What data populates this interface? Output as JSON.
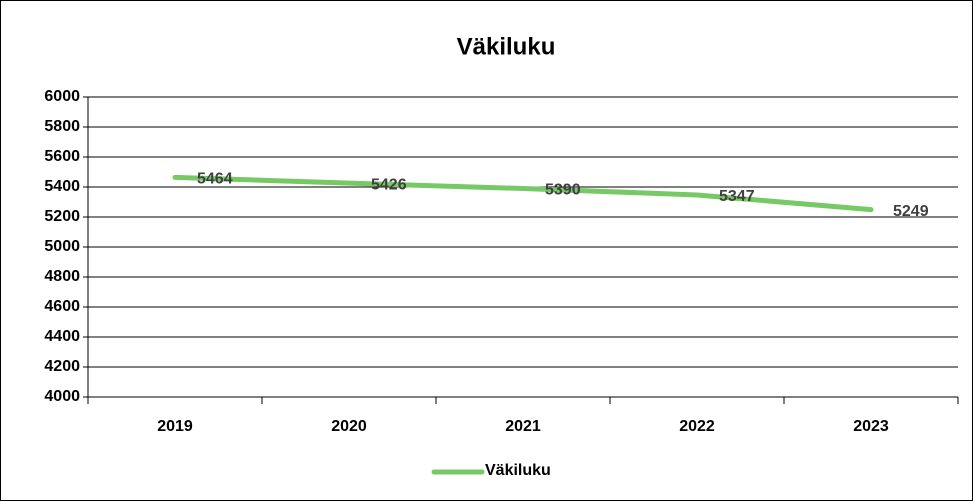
{
  "chart_data": {
    "type": "line",
    "title": "Väkiluku",
    "categories": [
      "2019",
      "2020",
      "2021",
      "2022",
      "2023"
    ],
    "series": [
      {
        "name": "Väkiluku",
        "color": "#77c965",
        "values": [
          5464,
          5426,
          5390,
          5347,
          5249
        ]
      }
    ],
    "ylim": [
      4000,
      6000
    ],
    "yticks": [
      4000,
      4200,
      4400,
      4600,
      4800,
      5000,
      5200,
      5400,
      5600,
      5800,
      6000
    ],
    "grid": true,
    "legend": "bottom"
  }
}
